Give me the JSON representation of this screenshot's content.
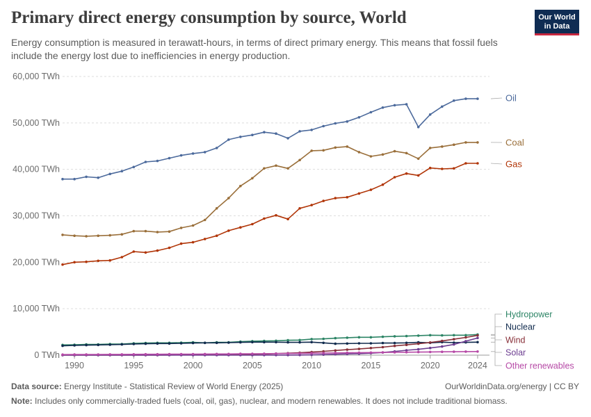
{
  "header": {
    "title": "Primary direct energy consumption by source, World",
    "subtitle": "Energy consumption is measured in terawatt-hours, in terms of direct primary energy. This means that fossil fuels include the energy lost due to inefficiencies in energy production.",
    "logo_line1": "Our World",
    "logo_line2": "in Data"
  },
  "footer": {
    "source_label": "Data source:",
    "source_text": "Energy Institute - Statistical Review of World Energy (2025)",
    "credit": "OurWorldinData.org/energy | CC BY",
    "note_label": "Note:",
    "note_text": "Includes only commercially-traded fuels (coal, oil, gas), nuclear, and modern renewables. It does not include traditional biomass."
  },
  "chart_data": {
    "type": "line",
    "x": [
      1989,
      1990,
      1991,
      1992,
      1993,
      1994,
      1995,
      1996,
      1997,
      1998,
      1999,
      2000,
      2001,
      2002,
      2003,
      2004,
      2005,
      2006,
      2007,
      2008,
      2009,
      2010,
      2011,
      2012,
      2013,
      2014,
      2015,
      2016,
      2017,
      2018,
      2019,
      2020,
      2021,
      2022,
      2023,
      2024
    ],
    "ylim": [
      0,
      60000
    ],
    "xlim": [
      1989,
      2025
    ],
    "y_ticks": [
      0,
      10000,
      20000,
      30000,
      40000,
      50000,
      60000
    ],
    "y_tick_labels": [
      "0 TWh",
      "10,000 TWh",
      "20,000 TWh",
      "30,000 TWh",
      "40,000 TWh",
      "50,000 TWh",
      "60,000 TWh"
    ],
    "x_ticks": [
      1990,
      1995,
      2000,
      2005,
      2010,
      2015,
      2020,
      2024
    ],
    "x_tick_labels": [
      "1990",
      "1995",
      "2000",
      "2005",
      "2010",
      "2015",
      "2020",
      "2024"
    ],
    "grid": "horizontal dashed",
    "legend_placement": "right, end of lines",
    "series": [
      {
        "name": "Oil",
        "color": "#4c6a9c",
        "values": [
          37900,
          37900,
          38400,
          38200,
          39000,
          39600,
          40500,
          41600,
          41800,
          42400,
          43000,
          43400,
          43700,
          44600,
          46400,
          47000,
          47400,
          48000,
          47700,
          46700,
          48200,
          48500,
          49300,
          49900,
          50300,
          51200,
          52300,
          53300,
          53800,
          54000,
          49100,
          51800,
          53500,
          54800,
          55200,
          55200
        ]
      },
      {
        "name": "Coal",
        "color": "#9a6f3a",
        "values": [
          25900,
          25700,
          25600,
          25700,
          25800,
          26000,
          26700,
          26700,
          26500,
          26600,
          27400,
          27900,
          29100,
          31600,
          33800,
          36400,
          38100,
          40200,
          40800,
          40200,
          42000,
          44000,
          44100,
          44700,
          44900,
          43700,
          42800,
          43200,
          43900,
          43500,
          42300,
          44600,
          44900,
          45300,
          45800,
          45800
        ]
      },
      {
        "name": "Gas",
        "color": "#b13507",
        "values": [
          19500,
          20000,
          20100,
          20300,
          20400,
          21100,
          22300,
          22100,
          22500,
          23100,
          24000,
          24300,
          25000,
          25700,
          26800,
          27500,
          28200,
          29400,
          30100,
          29300,
          31600,
          32300,
          33200,
          33800,
          34000,
          34800,
          35600,
          36700,
          38300,
          39100,
          38700,
          40300,
          40100,
          40200,
          41300,
          41300
        ]
      },
      {
        "name": "Hydropower",
        "color": "#2c8465",
        "values": [
          2200,
          2250,
          2300,
          2300,
          2400,
          2400,
          2550,
          2600,
          2650,
          2650,
          2700,
          2750,
          2650,
          2750,
          2750,
          2900,
          3000,
          3050,
          3100,
          3200,
          3250,
          3450,
          3500,
          3650,
          3750,
          3850,
          3850,
          3950,
          4050,
          4100,
          4200,
          4300,
          4250,
          4300,
          4300,
          4450
        ]
      },
      {
        "name": "Nuclear",
        "color": "#102a4d",
        "values": [
          2000,
          2100,
          2150,
          2200,
          2250,
          2300,
          2400,
          2450,
          2500,
          2500,
          2550,
          2600,
          2650,
          2650,
          2700,
          2750,
          2800,
          2800,
          2800,
          2750,
          2750,
          2800,
          2650,
          2450,
          2500,
          2550,
          2550,
          2600,
          2600,
          2650,
          2750,
          2650,
          2800,
          2700,
          2750,
          2800
        ]
      },
      {
        "name": "Wind",
        "color": "#883039",
        "values": [
          0,
          0,
          0,
          0,
          0,
          10,
          10,
          20,
          20,
          30,
          40,
          60,
          80,
          100,
          130,
          160,
          200,
          260,
          330,
          420,
          520,
          660,
          820,
          1000,
          1180,
          1330,
          1520,
          1720,
          1990,
          2220,
          2450,
          2730,
          3050,
          3420,
          3820,
          4250
        ]
      },
      {
        "name": "Solar",
        "color": "#6d3e91",
        "values": [
          0,
          0,
          0,
          0,
          0,
          0,
          0,
          0,
          0,
          0,
          0,
          0,
          0,
          0,
          0,
          0,
          0,
          10,
          10,
          20,
          30,
          60,
          120,
          190,
          250,
          320,
          420,
          570,
          790,
          1040,
          1260,
          1540,
          1850,
          2300,
          3000,
          3700
        ]
      },
      {
        "name": "Other renewables",
        "color": "#b649a6",
        "values": [
          120,
          130,
          140,
          150,
          160,
          170,
          180,
          190,
          200,
          210,
          220,
          230,
          240,
          250,
          260,
          280,
          300,
          320,
          340,
          360,
          390,
          420,
          450,
          480,
          510,
          540,
          560,
          580,
          600,
          630,
          660,
          690,
          720,
          740,
          760,
          780
        ]
      }
    ]
  }
}
